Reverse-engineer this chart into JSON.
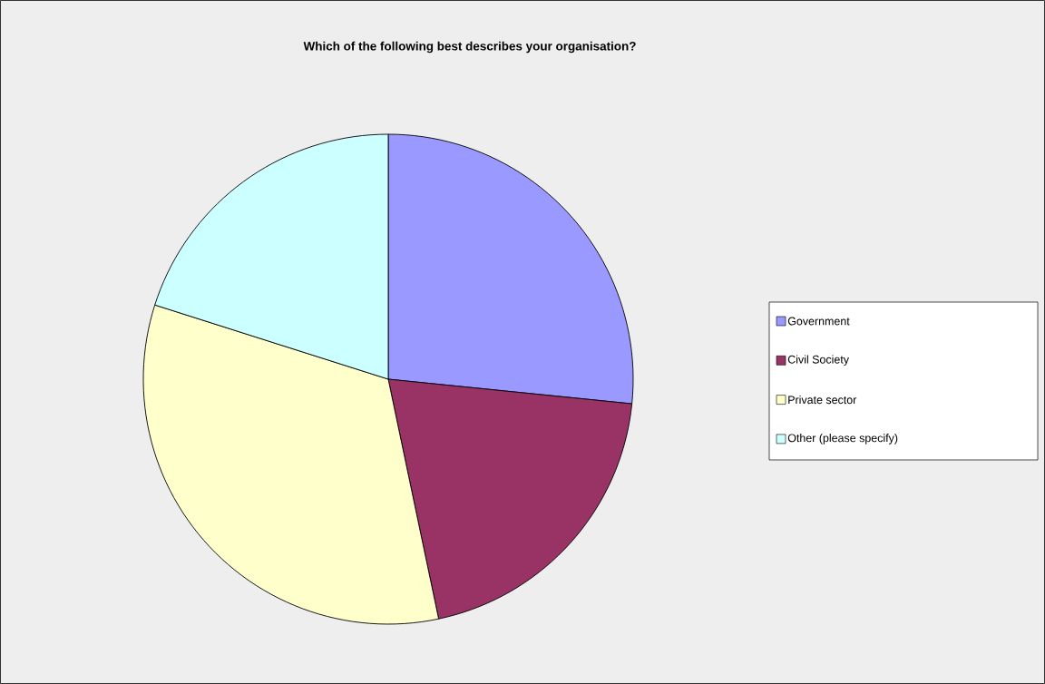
{
  "chart_data": {
    "type": "pie",
    "title": "Which of the following best describes your organisation?",
    "categories": [
      "Government",
      "Civil Society",
      "Private sector",
      "Other (please specify)"
    ],
    "values": [
      26.6,
      20.1,
      33.2,
      20.1
    ],
    "colors": [
      "#9999ff",
      "#993366",
      "#ffffcc",
      "#ccffff"
    ],
    "legend": "right"
  }
}
